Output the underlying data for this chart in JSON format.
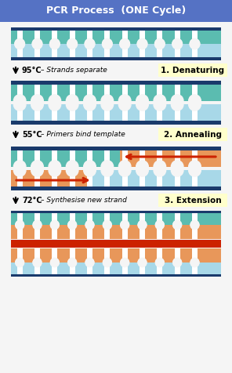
{
  "title": "PCR Process  (ONE Cycle)",
  "title_bg": "#5572c4",
  "title_color": "white",
  "bg_color": "#f5f5f5",
  "steps": [
    {
      "label": "1. Denaturing",
      "temp": "95°C",
      "desc": "Strands separate"
    },
    {
      "label": "2. Annealing",
      "temp": "55°C",
      "desc": "Primers bind template"
    },
    {
      "label": "3. Extension",
      "temp": "72°C",
      "desc": "Synthesise new strand"
    }
  ],
  "step_label_bg": "#ffffcc",
  "dna_rail_color": "#1a3a6b",
  "dna_teal": "#5bbcb0",
  "dna_light_blue": "#a8d8e8",
  "dna_orange": "#e8975a",
  "arrow_color": "#cc2200",
  "n_rungs": 11,
  "fig_w": 2.96,
  "fig_h": 4.76,
  "dpi": 100
}
